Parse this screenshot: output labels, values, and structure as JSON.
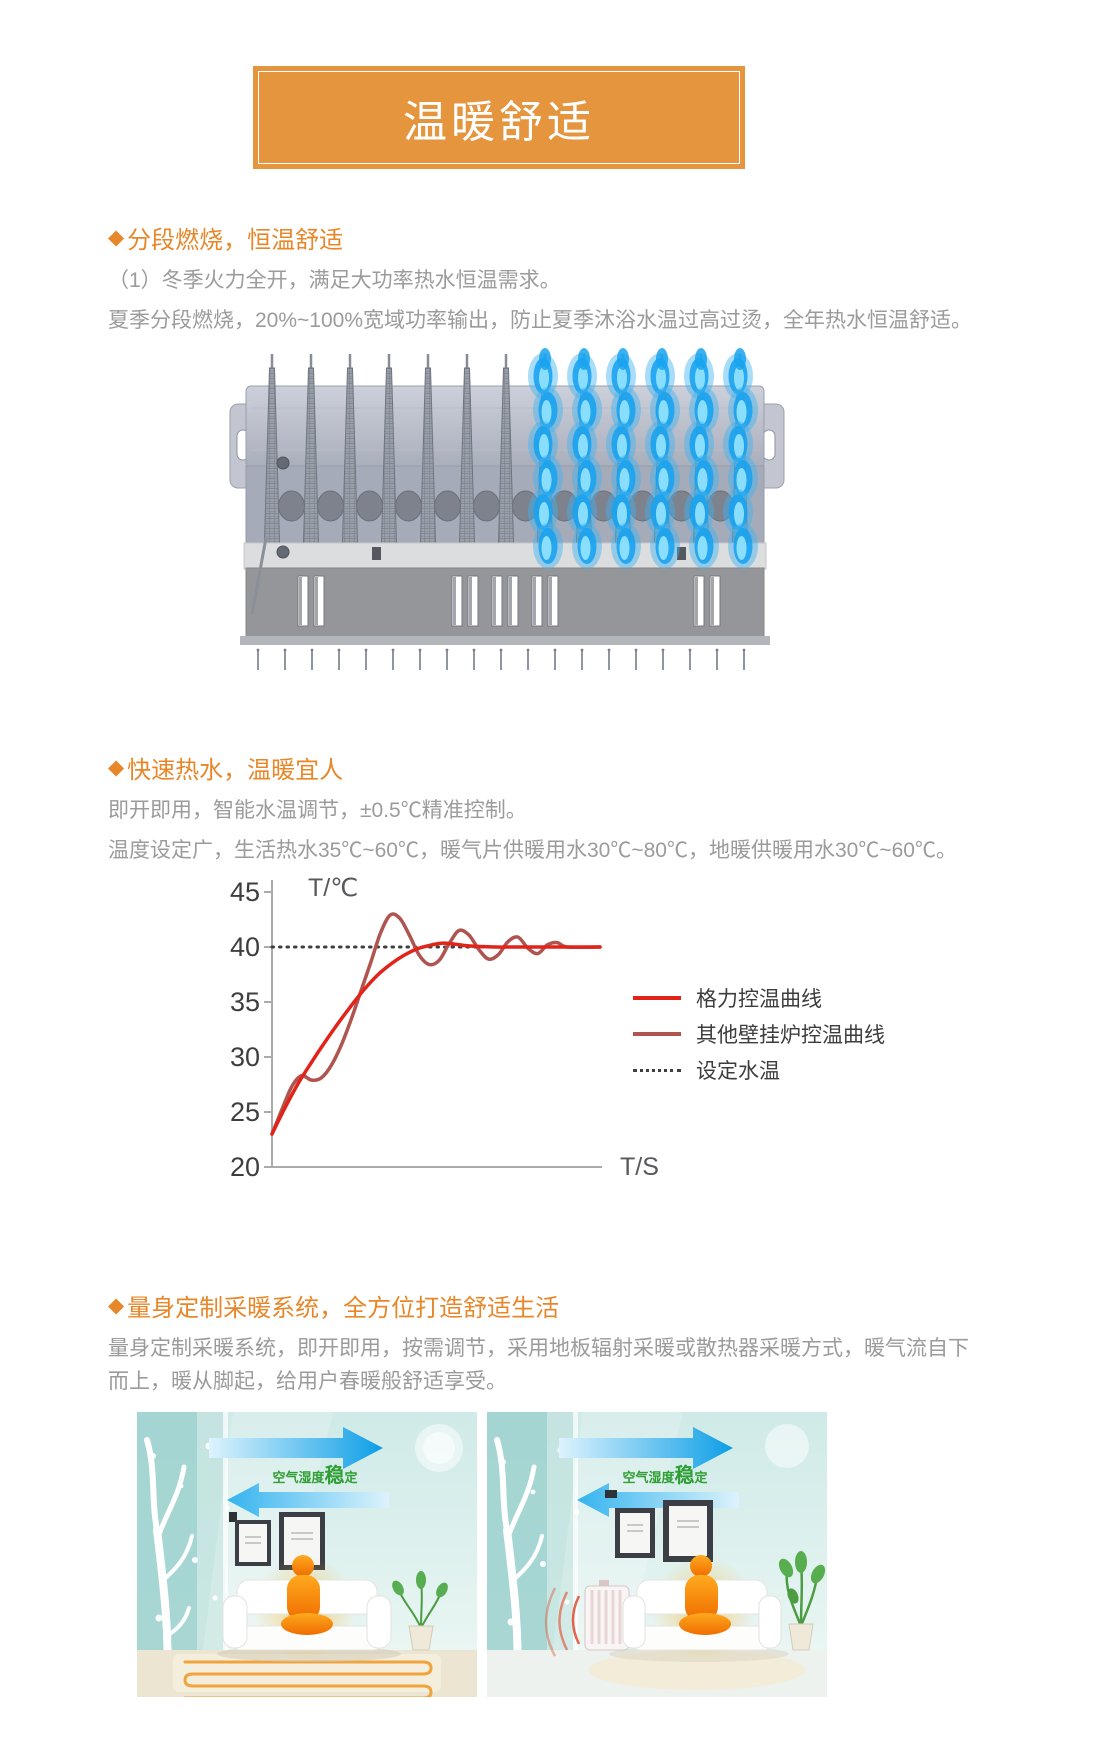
{
  "banner": {
    "title": "温暖舒适"
  },
  "ui": {
    "bullet": "◆"
  },
  "sections": [
    {
      "heading": "分段燃烧，恒温舒适",
      "paragraphs": [
        "（1）冬季火力全开，满足大功率热水恒温需求。",
        "夏季分段燃烧，20%~100%宽域功率输出，防止夏季沐浴水温过高过烫，全年热水恒温舒适。"
      ]
    },
    {
      "heading": "快速热水，温暖宜人",
      "paragraphs": [
        "即开即用，智能水温调节，±0.5℃精准控制。",
        "温度设定广，生活热水35℃~60℃，暖气片供暖用水30℃~80℃，地暖供暖用水30℃~60℃。"
      ]
    },
    {
      "heading": "量身定制采暖系统，全方位打造舒适生活",
      "paragraphs": [
        "量身定制采暖系统，即开即用，按需调节，采用地板辐射采暖或散热器采暖方式，暖气流自下而上，暖从脚起，给用户春暖般舒适享受。"
      ]
    }
  ],
  "burner": {
    "description": "分段燃烧燃烧器示意图（右侧分段点燃蓝色火焰）",
    "segments_total": 13,
    "segments_lit": 6,
    "flame_color": "#19a3ef"
  },
  "chart_data": {
    "type": "line",
    "title": "",
    "xlabel": "T/S",
    "ylabel": "T/℃",
    "ylim": [
      20,
      45
    ],
    "yticks": [
      20,
      25,
      30,
      35,
      40,
      45
    ],
    "grid": false,
    "legend_position": "right",
    "setpoint": 40,
    "series": [
      {
        "name": "格力控温曲线",
        "color": "#e2231a",
        "style": "solid",
        "x": [
          0,
          4,
          8,
          12,
          16,
          20,
          24,
          28,
          32,
          36,
          40,
          44,
          48,
          52,
          56,
          60,
          68,
          76,
          100
        ],
        "y": [
          23,
          25.4,
          27.6,
          29.5,
          31.3,
          33,
          34.6,
          36.1,
          37.4,
          38.4,
          39.2,
          39.8,
          40.15,
          40.35,
          40.25,
          40.1,
          40,
          40,
          40
        ]
      },
      {
        "name": "其他壁挂炉控温曲线",
        "color": "#b05450",
        "style": "solid",
        "x": [
          0,
          3,
          6,
          9,
          12,
          15,
          18,
          21,
          24,
          27,
          30,
          33,
          36,
          39,
          42,
          45,
          48,
          51,
          54,
          57,
          60,
          63,
          66,
          69,
          72,
          75,
          78,
          81,
          84,
          87,
          90,
          100
        ],
        "y": [
          23,
          25.2,
          27.3,
          28.3,
          27.9,
          28.1,
          29.2,
          31,
          33.3,
          35.9,
          38.5,
          41.2,
          42.9,
          42.6,
          41,
          39.2,
          38.4,
          38.8,
          40.3,
          41.5,
          41.1,
          39.8,
          38.9,
          39.3,
          40.5,
          40.9,
          39.9,
          39.4,
          40.2,
          40.4,
          40,
          40
        ]
      },
      {
        "name": "设定水温",
        "color": "#3f3f3f",
        "style": "dotted",
        "x": [
          0,
          100
        ],
        "y": [
          40,
          40
        ]
      }
    ]
  },
  "panels": [
    {
      "label_pre": "空气湿度",
      "label_big": "稳",
      "label_post": "定",
      "description": "地板辐射采暖示意"
    },
    {
      "label_pre": "空气湿度",
      "label_big": "稳",
      "label_post": "定",
      "description": "散热器采暖示意"
    }
  ],
  "colors": {
    "accent_orange": "#e8872a",
    "banner_orange": "#e6953f",
    "text_gray": "#9b9b9b",
    "axis_gray": "#ababab",
    "tick_text": "#3e3e3e",
    "gree_red": "#e2231a",
    "other_red": "#b05450",
    "flame_blue": "#19a3ef",
    "panel_green": "#2f9e33"
  }
}
